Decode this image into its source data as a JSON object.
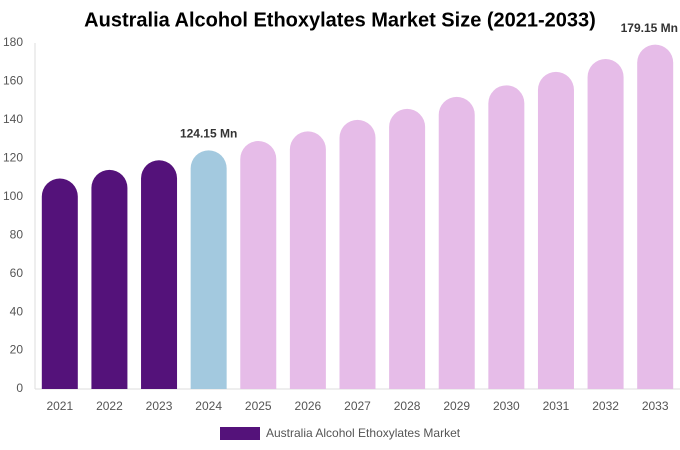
{
  "chart_data": {
    "type": "bar",
    "title": "Australia Alcohol Ethoxylates Market Size (2021-2033)",
    "categories": [
      "2021",
      "2022",
      "2023",
      "2024",
      "2025",
      "2026",
      "2027",
      "2028",
      "2029",
      "2030",
      "2031",
      "2032",
      "2033"
    ],
    "series": [
      {
        "name": "Australia Alcohol Ethoxylates Market",
        "color": "#54127a",
        "values": [
          109.5,
          114,
          119,
          124.15,
          129,
          134,
          140,
          145.7,
          152,
          158,
          165,
          171.7,
          179.15
        ],
        "colors": [
          "#54127a",
          "#54127a",
          "#54127a",
          "#a3c9df",
          "#e6bce8",
          "#e6bce8",
          "#e6bce8",
          "#e6bce8",
          "#e6bce8",
          "#e6bce8",
          "#e6bce8",
          "#e6bce8",
          "#e6bce8"
        ],
        "value_labels": [
          null,
          null,
          null,
          "124.15 Mn",
          null,
          null,
          null,
          null,
          null,
          null,
          null,
          null,
          "179.15 Mn"
        ]
      }
    ],
    "ylim": [
      0,
      180
    ],
    "yticks": [
      0,
      20,
      40,
      60,
      80,
      100,
      120,
      140,
      160,
      180
    ],
    "grid": false
  }
}
